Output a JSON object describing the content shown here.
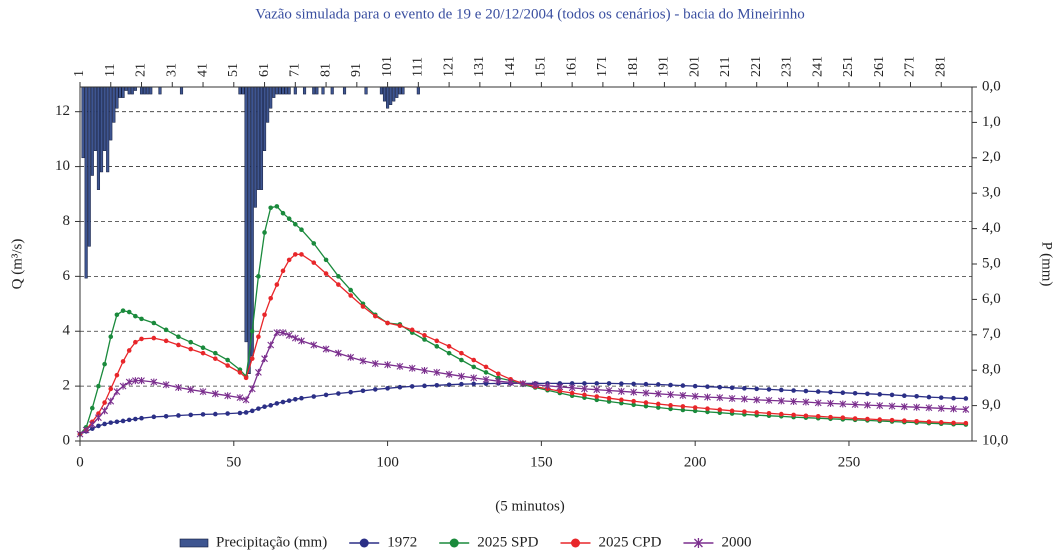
{
  "chart_data": {
    "type": "line",
    "title": "Vazão simulada para o evento de 19 e 20/12/2004 (todos os cenários) - bacia do Mineirinho",
    "x_label": "(5 minutos)",
    "y_label": "Q (m³/s)",
    "y2_label": "P (mm)",
    "xlim": [
      0,
      290
    ],
    "xticks": [
      0,
      50,
      100,
      150,
      200,
      250
    ],
    "ylim": [
      0,
      12.9
    ],
    "yticks": [
      0,
      2,
      4,
      6,
      8,
      10,
      12
    ],
    "grid": true,
    "y2lim": [
      10,
      0
    ],
    "y2_inverted": true,
    "y2ticks": [
      {
        "value": 0,
        "label": "0,0"
      },
      {
        "value": 1,
        "label": "1,0"
      },
      {
        "value": 2,
        "label": "2,0"
      },
      {
        "value": 3,
        "label": "3,0"
      },
      {
        "value": 4,
        "label": "4,0"
      },
      {
        "value": 5,
        "label": "5,0"
      },
      {
        "value": 6,
        "label": "6,0"
      },
      {
        "value": 7,
        "label": "7,0"
      },
      {
        "value": 8,
        "label": "8,0"
      },
      {
        "value": 9,
        "label": "9,0"
      },
      {
        "value": 10,
        "label": "10,0"
      }
    ],
    "top_ticks": [
      {
        "value": 0,
        "label": "1"
      },
      {
        "value": 10,
        "label": "11"
      },
      {
        "value": 20,
        "label": "21"
      },
      {
        "value": 30,
        "label": "31"
      },
      {
        "value": 40,
        "label": "41"
      },
      {
        "value": 50,
        "label": "51"
      },
      {
        "value": 60,
        "label": "61"
      },
      {
        "value": 70,
        "label": "71"
      },
      {
        "value": 80,
        "label": "81"
      },
      {
        "value": 90,
        "label": "91"
      },
      {
        "value": 100,
        "label": "101"
      },
      {
        "value": 110,
        "label": "111"
      },
      {
        "value": 120,
        "label": "121"
      },
      {
        "value": 130,
        "label": "131"
      },
      {
        "value": 140,
        "label": "141"
      },
      {
        "value": 150,
        "label": "151"
      },
      {
        "value": 160,
        "label": "161"
      },
      {
        "value": 170,
        "label": "171"
      },
      {
        "value": 180,
        "label": "181"
      },
      {
        "value": 190,
        "label": "191"
      },
      {
        "value": 200,
        "label": "201"
      },
      {
        "value": 210,
        "label": "211"
      },
      {
        "value": 220,
        "label": "221"
      },
      {
        "value": 230,
        "label": "231"
      },
      {
        "value": 240,
        "label": "241"
      },
      {
        "value": 250,
        "label": "251"
      },
      {
        "value": 260,
        "label": "261"
      },
      {
        "value": 270,
        "label": "271"
      },
      {
        "value": 280,
        "label": "281"
      }
    ],
    "precipitation": {
      "name": "Precipitação (mm)",
      "color": "#3e5590",
      "axis": "y2",
      "x": [
        1,
        2,
        3,
        4,
        5,
        6,
        7,
        8,
        9,
        10,
        11,
        12,
        13,
        14,
        15,
        16,
        17,
        18,
        20,
        21,
        22,
        23,
        26,
        33,
        52,
        53,
        54,
        55,
        56,
        57,
        58,
        59,
        60,
        61,
        62,
        63,
        64,
        65,
        66,
        67,
        68,
        70,
        73,
        76,
        77,
        79,
        82,
        86,
        93,
        98,
        99,
        100,
        101,
        102,
        103,
        104,
        105,
        110
      ],
      "values": [
        2.0,
        5.4,
        4.5,
        2.5,
        1.8,
        2.9,
        2.4,
        1.8,
        2.4,
        1.5,
        1.0,
        0.6,
        0.3,
        0.3,
        0.1,
        0.2,
        0.2,
        0.1,
        0.2,
        0.2,
        0.2,
        0.2,
        0.2,
        0.2,
        0.2,
        0.2,
        7.2,
        8.1,
        7.6,
        3.4,
        2.9,
        2.9,
        1.8,
        1.0,
        0.6,
        0.3,
        0.2,
        0.2,
        0.2,
        0.2,
        0.2,
        0.2,
        0.2,
        0.2,
        0.2,
        0.2,
        0.2,
        0.2,
        0.2,
        0.2,
        0.4,
        0.6,
        0.5,
        0.4,
        0.3,
        0.2,
        0.2,
        0.2
      ]
    },
    "x": [
      0,
      2,
      4,
      6,
      8,
      10,
      12,
      14,
      16,
      18,
      20,
      24,
      28,
      32,
      36,
      40,
      44,
      48,
      52,
      54,
      56,
      58,
      60,
      62,
      64,
      66,
      68,
      70,
      72,
      76,
      80,
      84,
      88,
      92,
      96,
      100,
      104,
      108,
      112,
      116,
      120,
      124,
      128,
      132,
      136,
      140,
      144,
      148,
      152,
      156,
      160,
      164,
      168,
      172,
      176,
      180,
      184,
      188,
      192,
      196,
      200,
      204,
      208,
      212,
      216,
      220,
      224,
      228,
      232,
      236,
      240,
      244,
      248,
      252,
      256,
      260,
      264,
      268,
      272,
      276,
      280,
      284,
      288
    ],
    "series": [
      {
        "name": "1972",
        "color": "#2b2f86",
        "marker": "circle",
        "values": [
          0.25,
          0.35,
          0.45,
          0.55,
          0.62,
          0.67,
          0.7,
          0.73,
          0.77,
          0.8,
          0.83,
          0.88,
          0.9,
          0.93,
          0.95,
          0.97,
          0.98,
          1.0,
          1.02,
          1.04,
          1.1,
          1.18,
          1.25,
          1.3,
          1.37,
          1.42,
          1.47,
          1.52,
          1.56,
          1.62,
          1.68,
          1.73,
          1.78,
          1.83,
          1.88,
          1.92,
          1.96,
          1.99,
          2.01,
          2.03,
          2.05,
          2.07,
          2.08,
          2.09,
          2.1,
          2.1,
          2.1,
          2.1,
          2.1,
          2.1,
          2.1,
          2.1,
          2.1,
          2.1,
          2.09,
          2.08,
          2.07,
          2.06,
          2.04,
          2.02,
          2.0,
          1.98,
          1.96,
          1.94,
          1.92,
          1.9,
          1.88,
          1.86,
          1.84,
          1.82,
          1.8,
          1.78,
          1.76,
          1.74,
          1.72,
          1.7,
          1.68,
          1.65,
          1.63,
          1.6,
          1.58,
          1.56,
          1.55
        ]
      },
      {
        "name": "2025 SPD",
        "color": "#1a8a3c",
        "marker": "circle",
        "values": [
          0.25,
          0.5,
          1.2,
          2.0,
          2.8,
          3.8,
          4.6,
          4.75,
          4.7,
          4.55,
          4.45,
          4.3,
          4.05,
          3.8,
          3.6,
          3.4,
          3.2,
          2.95,
          2.6,
          2.35,
          4.0,
          6.0,
          7.6,
          8.5,
          8.55,
          8.3,
          8.1,
          7.9,
          7.7,
          7.2,
          6.6,
          6.0,
          5.5,
          5.0,
          4.6,
          4.3,
          4.25,
          3.95,
          3.7,
          3.45,
          3.2,
          2.95,
          2.7,
          2.5,
          2.3,
          2.2,
          2.05,
          1.95,
          1.85,
          1.75,
          1.65,
          1.58,
          1.5,
          1.44,
          1.38,
          1.32,
          1.27,
          1.22,
          1.17,
          1.13,
          1.1,
          1.06,
          1.03,
          1.0,
          0.97,
          0.94,
          0.92,
          0.9,
          0.87,
          0.85,
          0.83,
          0.81,
          0.79,
          0.77,
          0.75,
          0.73,
          0.71,
          0.69,
          0.67,
          0.65,
          0.63,
          0.61,
          0.6
        ]
      },
      {
        "name": "2025 CPD",
        "color": "#e8262a",
        "marker": "circle",
        "values": [
          0.25,
          0.4,
          0.7,
          1.0,
          1.4,
          1.9,
          2.4,
          2.9,
          3.3,
          3.6,
          3.72,
          3.75,
          3.65,
          3.5,
          3.35,
          3.2,
          3.0,
          2.75,
          2.5,
          2.3,
          3.0,
          3.8,
          4.6,
          5.2,
          5.7,
          6.2,
          6.6,
          6.8,
          6.8,
          6.5,
          6.1,
          5.7,
          5.3,
          4.9,
          4.55,
          4.3,
          4.2,
          4.05,
          3.85,
          3.65,
          3.45,
          3.2,
          2.95,
          2.7,
          2.45,
          2.25,
          2.1,
          1.98,
          1.9,
          1.82,
          1.75,
          1.68,
          1.62,
          1.56,
          1.5,
          1.45,
          1.4,
          1.35,
          1.3,
          1.26,
          1.22,
          1.18,
          1.14,
          1.1,
          1.07,
          1.04,
          1.01,
          0.98,
          0.95,
          0.92,
          0.9,
          0.87,
          0.85,
          0.82,
          0.8,
          0.78,
          0.76,
          0.74,
          0.72,
          0.7,
          0.68,
          0.66,
          0.65
        ]
      },
      {
        "name": "2000",
        "color": "#7b2f8e",
        "marker": "star",
        "values": [
          0.25,
          0.4,
          0.6,
          0.85,
          1.1,
          1.45,
          1.8,
          2.0,
          2.15,
          2.2,
          2.2,
          2.15,
          2.05,
          1.95,
          1.87,
          1.8,
          1.72,
          1.65,
          1.58,
          1.5,
          1.9,
          2.5,
          3.0,
          3.5,
          3.95,
          3.95,
          3.85,
          3.75,
          3.65,
          3.5,
          3.35,
          3.2,
          3.05,
          2.92,
          2.82,
          2.78,
          2.72,
          2.65,
          2.57,
          2.5,
          2.43,
          2.36,
          2.3,
          2.24,
          2.18,
          2.13,
          2.09,
          2.05,
          2.01,
          1.97,
          1.94,
          1.9,
          1.87,
          1.84,
          1.81,
          1.78,
          1.75,
          1.72,
          1.69,
          1.66,
          1.63,
          1.6,
          1.58,
          1.55,
          1.53,
          1.5,
          1.48,
          1.46,
          1.44,
          1.42,
          1.39,
          1.37,
          1.35,
          1.33,
          1.31,
          1.29,
          1.27,
          1.25,
          1.23,
          1.21,
          1.19,
          1.17,
          1.15
        ]
      }
    ]
  }
}
